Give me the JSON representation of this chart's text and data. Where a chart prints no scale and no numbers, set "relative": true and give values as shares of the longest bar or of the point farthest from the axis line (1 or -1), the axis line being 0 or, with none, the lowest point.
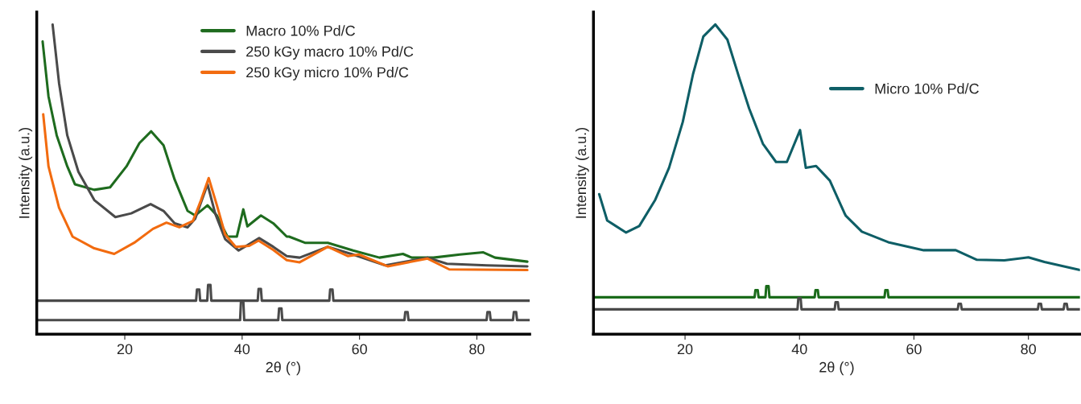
{
  "chart_data": [
    {
      "type": "line",
      "relative": true,
      "xlabel": "2θ (°)",
      "ylabel": "Intensity (a.u.)",
      "xlim": [
        5,
        89
      ],
      "xticks": [
        20,
        40,
        60,
        80
      ],
      "legend": "top",
      "grid": false,
      "tick_labels": "x",
      "series": [
        {
          "name": "Macro 10% Pd/C",
          "color": "#1e6b1e",
          "x": [
            6.0,
            7.0,
            8.4,
            10.2,
            11.5,
            14.8,
            17.5,
            20.3,
            22.5,
            24.5,
            26.6,
            28.5,
            30.7,
            32.0,
            34.1,
            35.7,
            37.5,
            39.1,
            40.2,
            40.9,
            43.2,
            45.3,
            47.6,
            48.0,
            50.7,
            54.6,
            58.9,
            63.4,
            67.4,
            68.9,
            72.6,
            77.1,
            81.1,
            83.1,
            88.6
          ],
          "values": [
            0.945,
            0.768,
            0.642,
            0.542,
            0.484,
            0.466,
            0.474,
            0.542,
            0.617,
            0.655,
            0.61,
            0.499,
            0.398,
            0.383,
            0.416,
            0.383,
            0.315,
            0.315,
            0.403,
            0.348,
            0.383,
            0.358,
            0.315,
            0.315,
            0.295,
            0.295,
            0.27,
            0.247,
            0.259,
            0.247,
            0.247,
            0.257,
            0.264,
            0.247,
            0.234
          ]
        },
        {
          "name": "250 kGy macro 10% Pd/C",
          "color": "#4a4a4a",
          "x": [
            7.7,
            8.8,
            10.2,
            12.1,
            14.8,
            18.4,
            21.1,
            24.4,
            26.6,
            28.5,
            30.7,
            32.0,
            34.1,
            35.4,
            37.1,
            39.4,
            42.9,
            45.3,
            47.6,
            49.8,
            54.6,
            58.9,
            64.4,
            71.6,
            74.9,
            81.7,
            88.6
          ],
          "values": [
            1.0,
            0.811,
            0.642,
            0.524,
            0.433,
            0.378,
            0.39,
            0.42,
            0.398,
            0.358,
            0.345,
            0.373,
            0.484,
            0.39,
            0.307,
            0.27,
            0.31,
            0.282,
            0.252,
            0.247,
            0.282,
            0.257,
            0.222,
            0.247,
            0.227,
            0.222,
            0.219
          ]
        },
        {
          "name": "250 kGy micro 10% Pd/C",
          "color": "#f26b0f",
          "x": [
            6.1,
            7.0,
            8.8,
            11.1,
            14.8,
            18.2,
            21.6,
            24.8,
            27.1,
            29.3,
            31.6,
            33.0,
            34.3,
            35.7,
            37.1,
            38.9,
            41.2,
            42.8,
            45.3,
            47.6,
            49.8,
            54.6,
            58.0,
            59.9,
            64.8,
            71.6,
            75.3,
            88.6
          ],
          "values": [
            0.71,
            0.542,
            0.408,
            0.315,
            0.277,
            0.259,
            0.295,
            0.34,
            0.36,
            0.345,
            0.365,
            0.433,
            0.504,
            0.416,
            0.322,
            0.282,
            0.285,
            0.302,
            0.272,
            0.239,
            0.232,
            0.282,
            0.252,
            0.257,
            0.219,
            0.244,
            0.209,
            0.207
          ]
        },
        {
          "color": "#4a4a4a",
          "x": [
            5,
            32.15,
            32.3,
            32.7,
            32.85,
            34.05,
            34.2,
            34.6,
            34.75,
            42.65,
            42.8,
            43.2,
            43.35,
            54.85,
            55.0,
            55.4,
            55.55,
            89
          ],
          "values": [
            0.108,
            0.108,
            0.144,
            0.144,
            0.108,
            0.108,
            0.159,
            0.159,
            0.108,
            0.108,
            0.146,
            0.146,
            0.108,
            0.108,
            0.144,
            0.144,
            0.108,
            0.108
          ]
        },
        {
          "color": "#4a4a4a",
          "x": [
            5,
            39.65,
            39.8,
            40.2,
            40.35,
            46.15,
            46.3,
            46.7,
            46.85,
            67.65,
            67.8,
            68.2,
            68.35,
            81.65,
            81.8,
            82.2,
            82.35,
            86.15,
            86.3,
            86.7,
            86.85,
            89
          ],
          "values": [
            0.045,
            0.045,
            0.106,
            0.106,
            0.045,
            0.045,
            0.083,
            0.083,
            0.045,
            0.045,
            0.071,
            0.071,
            0.045,
            0.045,
            0.071,
            0.071,
            0.045,
            0.045,
            0.071,
            0.071,
            0.045,
            0.045
          ]
        }
      ]
    },
    {
      "type": "line",
      "relative": true,
      "xlabel": "2θ (°)",
      "ylabel": "Intensity (a.u.)",
      "xlim": [
        4,
        89
      ],
      "xticks": [
        20,
        40,
        60,
        80
      ],
      "legend": "top right",
      "grid": false,
      "tick_labels": "x",
      "series": [
        {
          "name": "Micro 10% Pd/C",
          "color": "#0e5e66",
          "x": [
            5.0,
            6.4,
            9.7,
            12.0,
            14.8,
            17.2,
            19.6,
            21.4,
            23.2,
            25.3,
            27.4,
            29.4,
            31.2,
            33.6,
            35.9,
            37.8,
            40.1,
            41.1,
            42.9,
            45.3,
            47.8,
            48.1,
            50.9,
            55.5,
            61.7,
            67.3,
            71.0,
            75.8,
            80.0,
            82.8,
            89.0
          ],
          "values": [
            0.452,
            0.367,
            0.328,
            0.349,
            0.434,
            0.537,
            0.685,
            0.84,
            0.961,
            1.0,
            0.951,
            0.832,
            0.729,
            0.615,
            0.556,
            0.556,
            0.659,
            0.537,
            0.543,
            0.496,
            0.393,
            0.382,
            0.331,
            0.297,
            0.271,
            0.271,
            0.24,
            0.238,
            0.248,
            0.233,
            0.207
          ]
        },
        {
          "color": "#1a6b1a",
          "x": [
            4,
            32.15,
            32.3,
            32.7,
            32.85,
            34.05,
            34.2,
            34.6,
            34.75,
            42.65,
            42.8,
            43.2,
            43.35,
            54.85,
            55.0,
            55.4,
            55.55,
            89
          ],
          "values": [
            0.119,
            0.119,
            0.142,
            0.142,
            0.119,
            0.119,
            0.155,
            0.155,
            0.119,
            0.119,
            0.142,
            0.142,
            0.119,
            0.119,
            0.142,
            0.142,
            0.119,
            0.119
          ]
        },
        {
          "color": "#4a4a4a",
          "x": [
            4,
            39.65,
            39.8,
            40.2,
            40.35,
            46.15,
            46.3,
            46.7,
            46.85,
            67.65,
            67.8,
            68.2,
            68.35,
            81.65,
            81.8,
            82.2,
            82.35,
            86.15,
            86.3,
            86.7,
            86.85,
            89
          ],
          "values": [
            0.08,
            0.08,
            0.116,
            0.116,
            0.08,
            0.08,
            0.103,
            0.103,
            0.08,
            0.08,
            0.098,
            0.098,
            0.08,
            0.08,
            0.098,
            0.098,
            0.08,
            0.08,
            0.098,
            0.098,
            0.08,
            0.08
          ]
        }
      ]
    }
  ]
}
